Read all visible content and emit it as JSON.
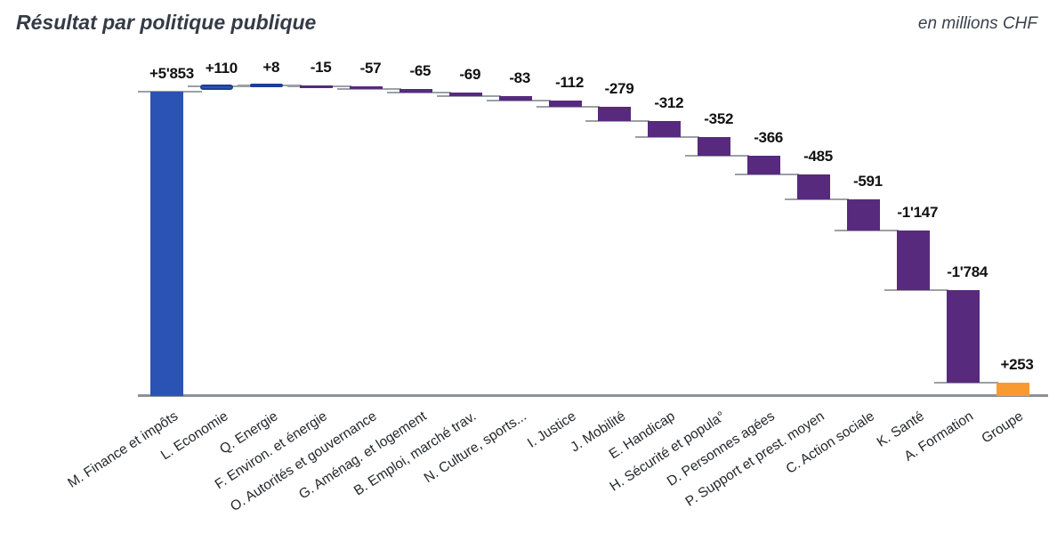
{
  "header": {
    "title": "Résultat par politique publique",
    "unit_label": "en millions CHF"
  },
  "chart_data": {
    "type": "bar",
    "subtype": "waterfall",
    "title": "Résultat par politique publique",
    "unit": "en millions CHF",
    "legend": "none",
    "grid": false,
    "ylim": [
      0,
      6200
    ],
    "categories": [
      "M. Finance et impôts",
      "L. Economie",
      "Q. Energie",
      "F. Environ. et énergie",
      "O. Autorités et gouvernance",
      "G. Aménag. et logement",
      "B. Emploi, marché trav.",
      "N. Culture, sports...",
      "I. Justice",
      "J. Mobilité",
      "E. Handicap",
      "H. Sécurité et popula°",
      "D. Personnes agées",
      "P. Support et prest. moyen",
      "C. Action sociale",
      "K. Santé",
      "A. Formation",
      "Groupe"
    ],
    "values": [
      5853,
      110,
      8,
      -15,
      -57,
      -65,
      -69,
      -83,
      -112,
      -279,
      -312,
      -352,
      -366,
      -485,
      -591,
      -1147,
      -1784,
      253
    ],
    "value_labels": [
      "+5'853",
      "+110",
      "+8",
      "-15",
      "-57",
      "-65",
      "-69",
      "-83",
      "-112",
      "-279",
      "-312",
      "-352",
      "-366",
      "-485",
      "-591",
      "-1'147",
      "-1'784",
      "+253"
    ],
    "bar_roles": [
      "increase",
      "increase",
      "increase",
      "decrease",
      "decrease",
      "decrease",
      "decrease",
      "decrease",
      "decrease",
      "decrease",
      "decrease",
      "decrease",
      "decrease",
      "decrease",
      "decrease",
      "decrease",
      "decrease",
      "total"
    ],
    "colors": {
      "increase": "#2b53b5",
      "increase_border": "#1b3e98",
      "decrease": "#572a7d",
      "total": "#f99932",
      "connector": "#9aa0a6",
      "baseline": "#8c9298",
      "value_label": "#111111",
      "category_label": "#23272c",
      "title": "#343b46"
    }
  }
}
